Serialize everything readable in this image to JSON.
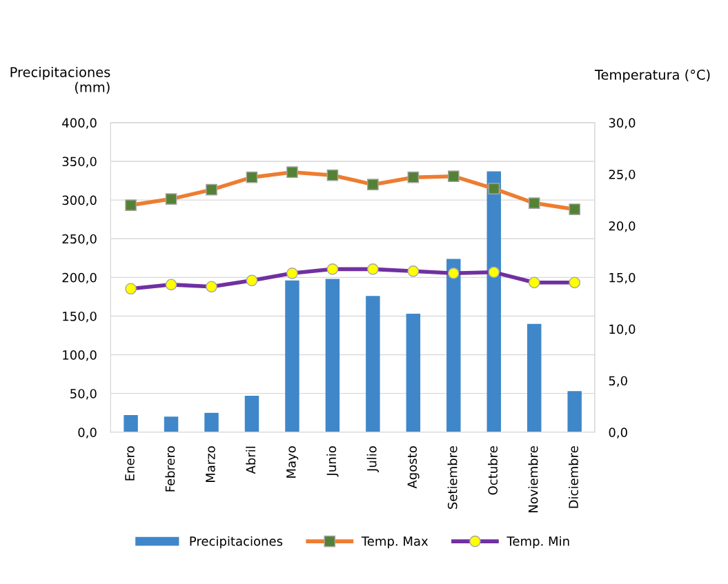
{
  "chart_data": {
    "type": "bar",
    "ylabel": "Precipitaciones\n(mm)",
    "y2label": "Temperatura (°C)",
    "categories": [
      "Enero",
      "Febrero",
      "Marzo",
      "Abril",
      "Mayo",
      "Junio",
      "Julio",
      "Agosto",
      "Setiembre",
      "Octubre",
      "Noviembre",
      "Diciembre"
    ],
    "series": [
      {
        "name": "Precipitaciones",
        "color": "#3f87c9",
        "values": [
          22,
          20,
          25,
          47,
          196,
          198,
          176,
          153,
          224,
          337,
          140,
          53
        ]
      },
      {
        "name": "Temp. Max",
        "type": "line",
        "axis": "y2",
        "color": "#ed7d31",
        "marker": "square",
        "values": [
          22.0,
          22.6,
          23.5,
          24.7,
          25.2,
          24.9,
          24.0,
          24.7,
          24.8,
          23.6,
          22.2,
          21.6
        ]
      },
      {
        "name": "Temp. Min",
        "type": "line",
        "axis": "y2",
        "color": "#7030a0",
        "marker": "circle",
        "values": [
          13.9,
          14.3,
          14.1,
          14.7,
          15.4,
          15.8,
          15.8,
          15.6,
          15.4,
          15.5,
          14.5,
          14.5
        ]
      }
    ],
    "ylim": [
      0,
      400
    ],
    "yticks": [
      {
        "value": 0,
        "label": "0,0"
      },
      {
        "value": 50,
        "label": "50,0"
      },
      {
        "value": 100,
        "label": "100,0"
      },
      {
        "value": 150,
        "label": "150,0"
      },
      {
        "value": 200,
        "label": "200,0"
      },
      {
        "value": 250,
        "label": "250,0"
      },
      {
        "value": 300,
        "label": "300,0"
      },
      {
        "value": 350,
        "label": "350,0"
      },
      {
        "value": 400,
        "label": "400,0"
      }
    ],
    "y2lim": [
      0,
      30
    ],
    "y2ticks": [
      {
        "value": 0,
        "label": "0,0"
      },
      {
        "value": 5,
        "label": "5,0"
      },
      {
        "value": 10,
        "label": "10,0"
      },
      {
        "value": 15,
        "label": "15,0"
      },
      {
        "value": 20,
        "label": "20,0"
      },
      {
        "value": 25,
        "label": "25,0"
      },
      {
        "value": 30,
        "label": "30,0"
      }
    ],
    "grid": "y",
    "legend": "bottom"
  }
}
